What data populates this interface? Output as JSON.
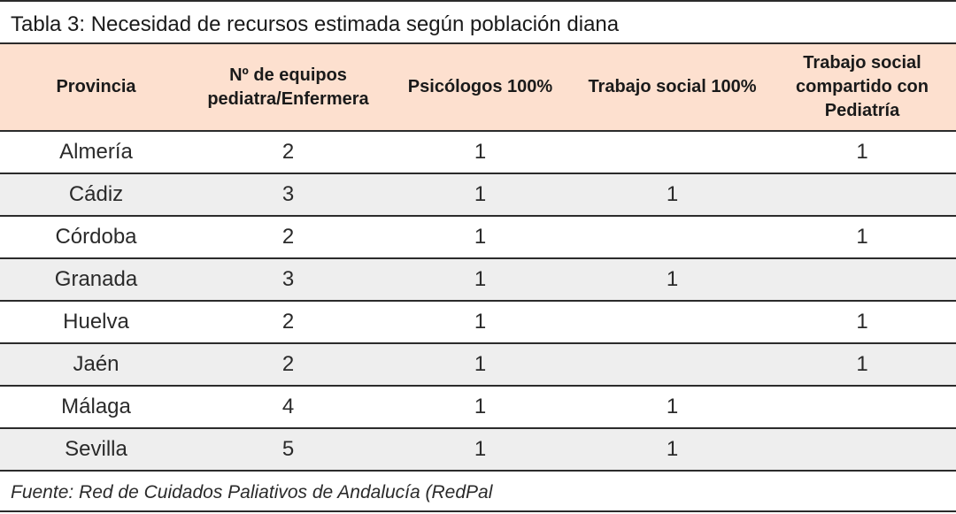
{
  "title": "Tabla 3: Necesidad de recursos estimada según población diana",
  "headers": [
    "Provincia",
    "Nº de equipos pediatra/Enfermera",
    "Psicólogos 100%",
    "Trabajo social 100%",
    "Trabajo social compartido con Pediatría"
  ],
  "rows": [
    [
      "Almería",
      "2",
      "1",
      "",
      "1"
    ],
    [
      "Cádiz",
      "3",
      "1",
      "1",
      ""
    ],
    [
      "Córdoba",
      "2",
      "1",
      "",
      "1"
    ],
    [
      "Granada",
      "3",
      "1",
      "1",
      ""
    ],
    [
      "Huelva",
      "2",
      "1",
      "",
      "1"
    ],
    [
      "Jaén",
      "2",
      "1",
      "",
      "1"
    ],
    [
      "Málaga",
      "4",
      "1",
      "1",
      ""
    ],
    [
      "Sevilla",
      "5",
      "1",
      "1",
      ""
    ]
  ],
  "source": "Fuente: Red de Cuidados Paliativos de Andalucía (RedPal"
}
